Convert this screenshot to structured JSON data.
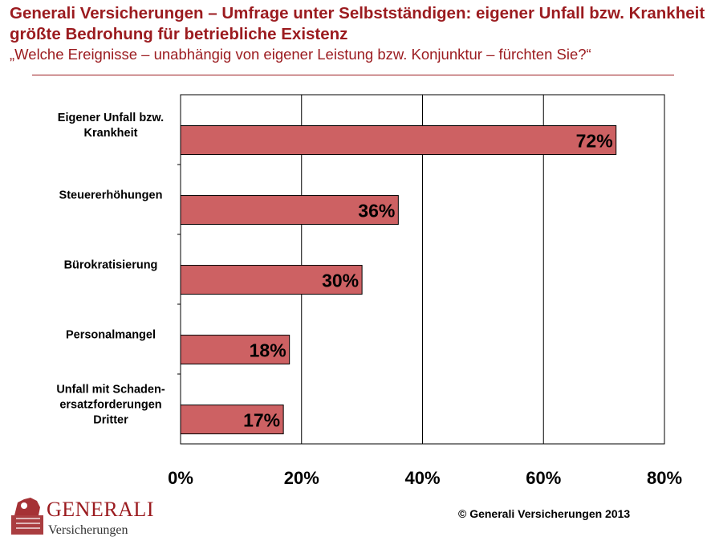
{
  "header": {
    "title": "Generali Versicherungen – Umfrage unter Selbstständigen: eigener Unfall bzw. Krankheit größte Bedrohung für betriebliche Existenz",
    "subtitle": "„Welche Ereignisse – unabhängig von eigener Leistung bzw. Konjunktur – fürchten Sie?“"
  },
  "chart_data": {
    "type": "bar",
    "orientation": "horizontal",
    "categories": [
      "Eigener Unfall bzw.\nKrankheit",
      "Steuererhöhungen",
      "Bürokratisierung",
      "Personalmangel",
      "Unfall mit Schaden-\nersatzforderungen\nDritter"
    ],
    "values": [
      72,
      36,
      30,
      18,
      17
    ],
    "value_labels": [
      "72%",
      "36%",
      "30%",
      "18%",
      "17%"
    ],
    "xlim": [
      0,
      80
    ],
    "x_ticks": [
      0,
      20,
      40,
      60,
      80
    ],
    "x_tick_labels": [
      "0%",
      "20%",
      "40%",
      "60%",
      "80%"
    ],
    "grid": true,
    "bar_color": "#cd6163",
    "bar_border_color": "#000000"
  },
  "footer": {
    "logo_text": "GENERALI",
    "logo_subtext": "Versicherungen",
    "copyright": "© Generali Versicherungen 2013"
  },
  "colors": {
    "accent": "#9b1b1f"
  }
}
